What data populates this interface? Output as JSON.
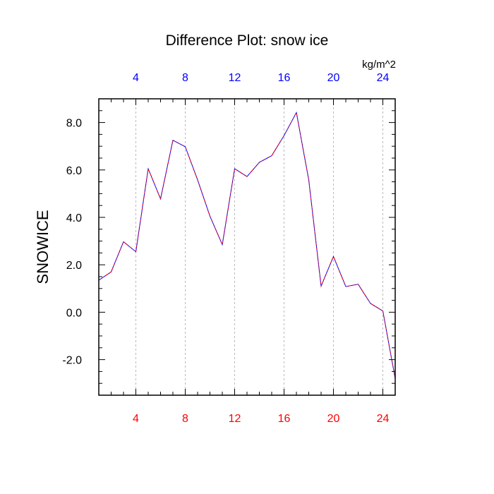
{
  "chart_data": {
    "type": "line",
    "title": "Difference Plot: snow ice",
    "ylabel": "SNOWICE",
    "units": "kg/m^2",
    "xlim": [
      1,
      25
    ],
    "ylim": [
      -3.5,
      9.0
    ],
    "x": [
      1,
      2,
      3,
      4,
      5,
      6,
      7,
      8,
      9,
      10,
      11,
      12,
      13,
      14,
      15,
      16,
      17,
      18,
      19,
      20,
      21,
      22,
      23,
      24,
      25
    ],
    "series": [
      {
        "values": [
          1.35,
          1.7,
          2.97,
          2.55,
          6.05,
          4.78,
          7.25,
          6.98,
          5.58,
          4.05,
          2.85,
          6.05,
          5.72,
          6.32,
          6.6,
          7.45,
          8.42,
          5.58,
          1.1,
          2.35,
          1.08,
          1.18,
          0.37,
          0.05,
          -2.8
        ],
        "colors": [
          "#0000ff",
          "#ff0000"
        ]
      }
    ],
    "x_ticks_bottom": [
      "4",
      "8",
      "12",
      "16",
      "20",
      "24"
    ],
    "x_ticks_top": [
      "4",
      "8",
      "12",
      "16",
      "20",
      "24"
    ],
    "x_tick_values": [
      4,
      8,
      12,
      16,
      20,
      24
    ],
    "y_ticks": [
      "-2.0",
      "0.0",
      "2.0",
      "4.0",
      "6.0",
      "8.0"
    ],
    "y_tick_values": [
      -2,
      0,
      2,
      4,
      6,
      8
    ],
    "grid": "vertical-dashed",
    "bottom_tick_color": "#ff0000",
    "top_tick_color": "#0000ff"
  }
}
